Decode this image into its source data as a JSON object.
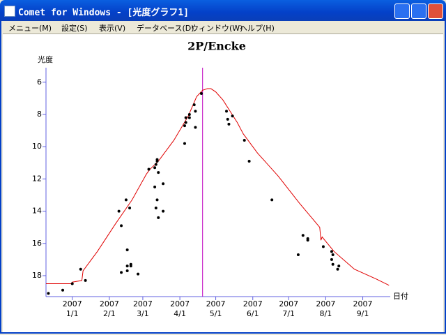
{
  "window": {
    "title": "Comet for Windows - [光度グラフ1]"
  },
  "menu": [
    "メニュー(M)",
    "設定(S)",
    "表示(V)",
    "データベース(D)",
    "ウィンドウ(W)",
    "ヘルプ(H)"
  ],
  "chart_data": {
    "type": "scatter",
    "title": "2P/Encke",
    "y_label": "光度",
    "x_label": "日付",
    "xlim": [
      "2006-12-10",
      "2007-09-24"
    ],
    "xticks": [
      {
        "value": "2007-01-01",
        "label": [
          "2007",
          "1/1"
        ]
      },
      {
        "value": "2007-02-01",
        "label": [
          "2007",
          "2/1"
        ]
      },
      {
        "value": "2007-03-01",
        "label": [
          "2007",
          "3/1"
        ]
      },
      {
        "value": "2007-04-01",
        "label": [
          "2007",
          "4/1"
        ]
      },
      {
        "value": "2007-05-01",
        "label": [
          "2007",
          "5/1"
        ]
      },
      {
        "value": "2007-06-01",
        "label": [
          "2007",
          "6/1"
        ]
      },
      {
        "value": "2007-07-01",
        "label": [
          "2007",
          "7/1"
        ]
      },
      {
        "value": "2007-08-01",
        "label": [
          "2007",
          "8/1"
        ]
      },
      {
        "value": "2007-09-01",
        "label": [
          "2007",
          "9/1"
        ]
      }
    ],
    "ylim": [
      5.1,
      19.3
    ],
    "y_inverted": true,
    "yticks": [
      6,
      8,
      10,
      12,
      14,
      16,
      18
    ],
    "axis_color": "#6060e0",
    "vline": {
      "x": "2007-04-20",
      "color": "#c000c0"
    },
    "curve": {
      "color": "#e00000",
      "x": [
        "2006-12-10",
        "2006-12-31",
        "2007-01-01",
        "2007-01-09",
        "2007-01-10",
        "2007-01-22",
        "2007-02-06",
        "2007-02-20",
        "2007-03-04",
        "2007-03-07",
        "2007-03-14",
        "2007-03-27",
        "2007-04-08",
        "2007-04-15",
        "2007-04-20",
        "2007-04-24",
        "2007-04-27",
        "2007-05-01",
        "2007-05-07",
        "2007-05-13",
        "2007-05-19",
        "2007-05-24",
        "2007-06-05",
        "2007-06-22",
        "2007-07-10",
        "2007-07-27",
        "2007-07-28",
        "2007-07-29",
        "2007-08-08",
        "2007-08-25",
        "2007-09-12",
        "2007-09-23"
      ],
      "values": [
        18.5,
        18.5,
        18.4,
        18.3,
        17.7,
        16.5,
        14.8,
        13.3,
        11.7,
        11.4,
        10.9,
        9.6,
        8.1,
        6.9,
        6.5,
        6.4,
        6.4,
        6.6,
        7.1,
        7.8,
        8.5,
        9.2,
        10.4,
        11.8,
        13.5,
        15.0,
        15.8,
        15.6,
        16.5,
        17.6,
        18.2,
        18.6
      ]
    },
    "points": {
      "color": "#000000",
      "x": [
        "2006-12-12",
        "2006-12-24",
        "2007-01-01",
        "2007-01-08",
        "2007-01-12",
        "2007-02-09",
        "2007-02-11",
        "2007-02-15",
        "2007-02-18",
        "2007-02-11",
        "2007-02-16",
        "2007-02-16",
        "2007-02-16",
        "2007-02-19",
        "2007-02-19",
        "2007-02-25",
        "2007-03-06",
        "2007-03-11",
        "2007-03-11",
        "2007-03-12",
        "2007-03-13",
        "2007-03-13",
        "2007-03-14",
        "2007-03-18",
        "2007-03-12",
        "2007-03-13",
        "2007-03-14",
        "2007-03-18",
        "2007-04-05",
        "2007-04-05",
        "2007-04-06",
        "2007-04-06",
        "2007-04-09",
        "2007-04-09",
        "2007-04-13",
        "2007-04-14",
        "2007-04-14",
        "2007-04-19",
        "2007-05-10",
        "2007-05-11",
        "2007-05-12",
        "2007-05-15",
        "2007-05-25",
        "2007-05-29",
        "2007-06-17",
        "2007-07-09",
        "2007-07-13",
        "2007-07-17",
        "2007-07-17",
        "2007-07-30",
        "2007-08-06",
        "2007-08-07",
        "2007-08-06",
        "2007-08-07",
        "2007-08-11",
        "2007-08-12"
      ],
      "values": [
        19.1,
        18.9,
        18.5,
        17.6,
        18.3,
        14.0,
        14.9,
        13.3,
        13.8,
        17.8,
        16.4,
        17.4,
        17.7,
        17.3,
        17.4,
        17.9,
        11.4,
        11.3,
        12.5,
        11.1,
        10.9,
        10.8,
        11.6,
        12.3,
        13.8,
        13.3,
        14.4,
        14.0,
        9.8,
        8.7,
        8.5,
        8.2,
        8.0,
        8.2,
        7.4,
        7.8,
        8.8,
        6.7,
        7.8,
        8.3,
        8.6,
        8.1,
        9.6,
        10.9,
        13.3,
        16.7,
        15.5,
        15.7,
        15.8,
        16.2,
        16.5,
        16.7,
        17.0,
        17.3,
        17.6,
        17.4
      ]
    }
  }
}
